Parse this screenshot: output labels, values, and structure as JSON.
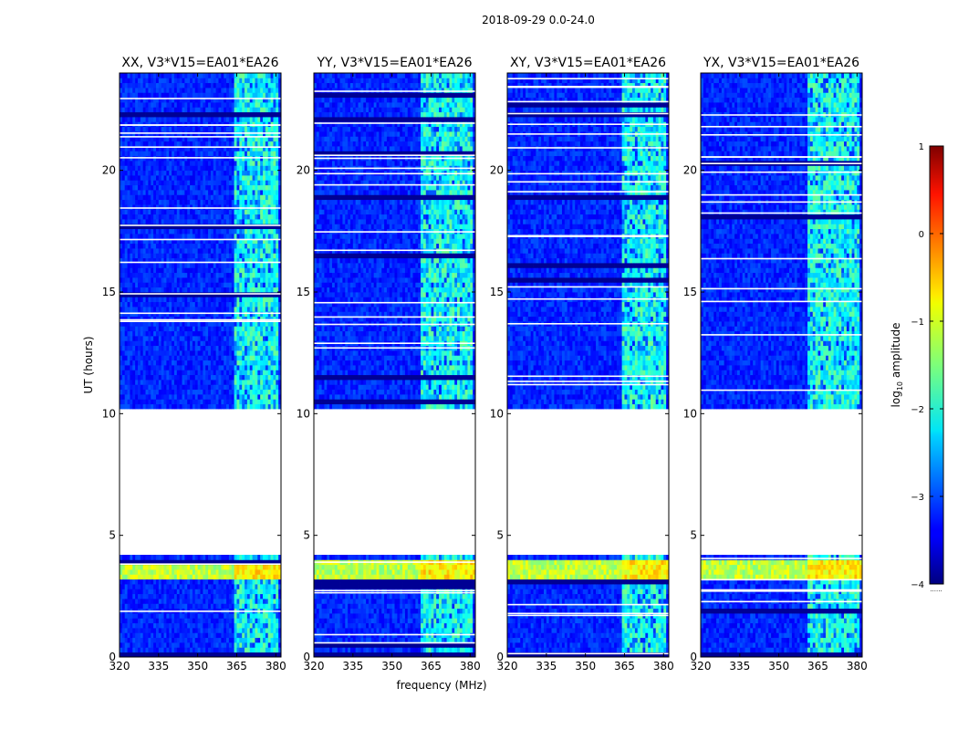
{
  "chart_data": {
    "type": "heatmap",
    "suptitle": "2018-09-29 0.0-24.0",
    "xlabel": "frequency (MHz)",
    "ylabel": "UT (hours)",
    "xlim": [
      320,
      382
    ],
    "ylim": [
      0,
      24
    ],
    "xticks": [
      320,
      335,
      350,
      365,
      380
    ],
    "yticks": [
      0,
      5,
      10,
      15,
      20
    ],
    "data_gap_hours": [
      4.2,
      10.2
    ],
    "bright_band_mhz": [
      361,
      381
    ],
    "noise_floor_log10": -3.2,
    "band_level_log10": -2.0,
    "burst_hours": [
      3.1,
      4.1
    ],
    "burst_level_log10": -1.2,
    "panels": [
      {
        "title": "XX, V3*V15=EA01*EA26",
        "band_start_mhz": 364
      },
      {
        "title": "YY, V3*V15=EA01*EA26",
        "band_start_mhz": 361
      },
      {
        "title": "XY, V3*V15=EA01*EA26",
        "band_start_mhz": 364
      },
      {
        "title": "YX, V3*V15=EA01*EA26",
        "band_start_mhz": 361
      }
    ],
    "colorbar": {
      "label": "log10 amplitude",
      "label_main": "log",
      "label_sub": "10",
      "label_rest": " amplitude",
      "min": -4,
      "max": 1,
      "ticks": [
        1,
        0,
        -1,
        -2,
        -3,
        -4
      ],
      "tick_labels": [
        "1",
        "0",
        "−1",
        "−2",
        "−3",
        "−4"
      ],
      "footer": "......"
    }
  }
}
